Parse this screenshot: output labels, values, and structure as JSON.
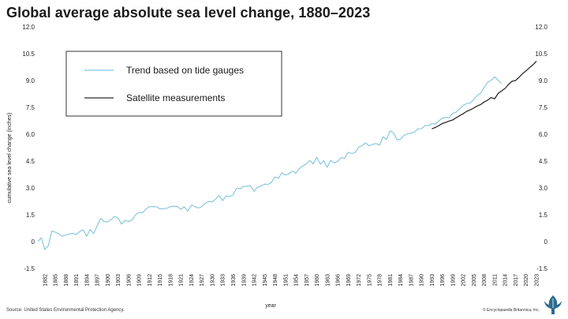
{
  "title": "Global average absolute sea level change, 1880–2023",
  "source": "Source: United States Environmental Protection Agency.",
  "copyright": "© Encyclopaedia Britannica, Inc.",
  "chart_data": {
    "type": "line",
    "title": "Global average absolute sea level change, 1880–2023",
    "xlabel": "year",
    "ylabel": "cumulative sea level change (inches)",
    "xlim": [
      1880,
      2023
    ],
    "ylim": [
      -1.5,
      12.0
    ],
    "yticks": [
      "-1.5",
      "0",
      "1.5",
      "3.0",
      "4.5",
      "6.0",
      "7.5",
      "9.0",
      "10.5",
      "12.0"
    ],
    "ytick_values": [
      -1.5,
      0,
      1.5,
      3.0,
      4.5,
      6.0,
      7.5,
      9.0,
      10.5,
      12.0
    ],
    "xticks": [
      "1882",
      "1885",
      "1888",
      "1891",
      "1894",
      "1897",
      "1900",
      "1903",
      "1906",
      "1909",
      "1912",
      "1915",
      "1918",
      "1921",
      "1924",
      "1927",
      "1930",
      "1933",
      "1936",
      "1939",
      "1942",
      "1945",
      "1948",
      "1951",
      "1954",
      "1957",
      "1960",
      "1963",
      "1966",
      "1969",
      "1972",
      "1975",
      "1978",
      "1981",
      "1984",
      "1987",
      "1990",
      "1993",
      "1996",
      "1999",
      "2002",
      "2005",
      "2008",
      "2011",
      "2014",
      "2017",
      "2020",
      "2023"
    ],
    "grid": false,
    "legend_position": "top-left",
    "series": [
      {
        "name": "Trend based on tide gauges",
        "color": "#7ec3df",
        "x": [
          1880,
          1881,
          1882,
          1883,
          1884,
          1885,
          1886,
          1887,
          1888,
          1889,
          1890,
          1891,
          1892,
          1893,
          1894,
          1895,
          1896,
          1897,
          1898,
          1899,
          1900,
          1901,
          1902,
          1903,
          1904,
          1905,
          1906,
          1907,
          1908,
          1909,
          1910,
          1911,
          1912,
          1913,
          1914,
          1915,
          1916,
          1917,
          1918,
          1919,
          1920,
          1921,
          1922,
          1923,
          1924,
          1925,
          1926,
          1927,
          1928,
          1929,
          1930,
          1931,
          1932,
          1933,
          1934,
          1935,
          1936,
          1937,
          1938,
          1939,
          1940,
          1941,
          1942,
          1943,
          1944,
          1945,
          1946,
          1947,
          1948,
          1949,
          1950,
          1951,
          1952,
          1953,
          1954,
          1955,
          1956,
          1957,
          1958,
          1959,
          1960,
          1961,
          1962,
          1963,
          1964,
          1965,
          1966,
          1967,
          1968,
          1969,
          1970,
          1971,
          1972,
          1973,
          1974,
          1975,
          1976,
          1977,
          1978,
          1979,
          1980,
          1981,
          1982,
          1983,
          1984,
          1985,
          1986,
          1987,
          1988,
          1989,
          1990,
          1991,
          1992,
          1993,
          1994,
          1995,
          1996,
          1997,
          1998,
          1999,
          2000,
          2001,
          2002,
          2003,
          2004,
          2005,
          2006,
          2007,
          2008,
          2009,
          2010,
          2011,
          2012,
          2013
        ],
        "values": [
          0.0,
          0.22,
          -0.44,
          -0.23,
          0.59,
          0.53,
          0.43,
          0.3,
          0.37,
          0.43,
          0.46,
          0.4,
          0.56,
          0.66,
          0.3,
          0.68,
          0.45,
          0.87,
          1.3,
          1.11,
          1.1,
          1.23,
          1.41,
          1.3,
          0.98,
          1.19,
          1.11,
          1.21,
          1.5,
          1.62,
          1.62,
          1.81,
          1.96,
          1.95,
          1.95,
          1.83,
          1.84,
          1.86,
          1.95,
          1.98,
          1.96,
          1.8,
          1.95,
          1.7,
          2.04,
          1.96,
          1.88,
          1.95,
          2.15,
          2.24,
          2.22,
          2.37,
          2.58,
          2.29,
          2.56,
          2.51,
          2.61,
          2.98,
          2.95,
          3.09,
          3.1,
          3.12,
          2.81,
          3.04,
          3.1,
          3.21,
          3.2,
          3.31,
          3.61,
          3.54,
          3.84,
          3.72,
          3.79,
          3.94,
          3.82,
          4.08,
          4.23,
          4.35,
          4.53,
          4.34,
          4.71,
          4.33,
          4.52,
          4.15,
          4.54,
          4.4,
          4.49,
          4.7,
          4.66,
          4.99,
          4.92,
          4.98,
          5.27,
          5.37,
          5.52,
          5.35,
          5.43,
          5.48,
          5.38,
          5.86,
          5.7,
          6.19,
          6.07,
          5.68,
          5.72,
          5.93,
          6.02,
          6.06,
          6.12,
          6.3,
          6.31,
          6.48,
          6.48,
          6.59,
          6.56,
          6.74,
          6.9,
          6.94,
          6.92,
          7.17,
          7.24,
          7.42,
          7.61,
          7.71,
          7.74,
          7.94,
          8.17,
          8.3,
          8.62,
          8.9,
          9.01,
          9.21,
          9.02,
          8.83
        ]
      },
      {
        "name": "Satellite measurements",
        "color": "#2a2a2a",
        "x": [
          1993,
          1994,
          1995,
          1996,
          1997,
          1998,
          1999,
          2000,
          2001,
          2002,
          2003,
          2004,
          2005,
          2006,
          2007,
          2008,
          2009,
          2010,
          2011,
          2012,
          2013,
          2014,
          2015,
          2016,
          2017,
          2018,
          2019,
          2020,
          2021,
          2022,
          2023
        ],
        "values": [
          6.3,
          6.38,
          6.48,
          6.6,
          6.66,
          6.74,
          6.8,
          6.92,
          7.04,
          7.15,
          7.28,
          7.36,
          7.46,
          7.58,
          7.66,
          7.8,
          7.9,
          8.05,
          7.98,
          8.28,
          8.42,
          8.56,
          8.78,
          8.96,
          9.0,
          9.18,
          9.38,
          9.54,
          9.72,
          9.88,
          10.08
        ]
      }
    ]
  }
}
